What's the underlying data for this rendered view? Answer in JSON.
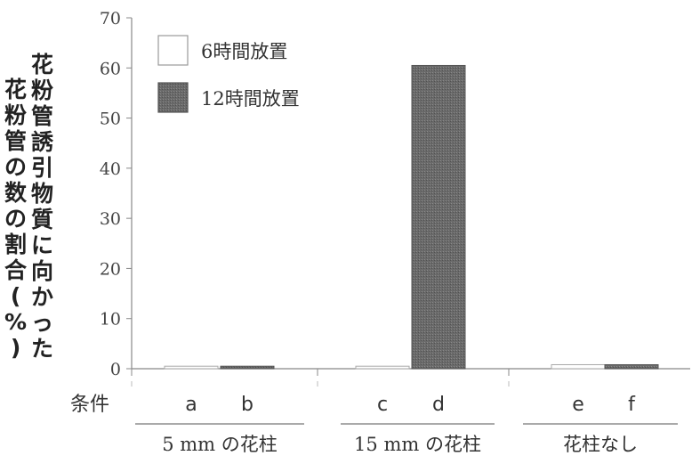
{
  "chart_data": {
    "type": "bar",
    "ylabel_lines": [
      "花粉管誘引物質に向かった",
      "花粉管の数の割合(%)"
    ],
    "ylim": [
      0,
      70
    ],
    "yticks": [
      0,
      10,
      20,
      30,
      40,
      50,
      60,
      70
    ],
    "grid": false,
    "legend_position": "top-left",
    "series": [
      {
        "name": "6時間放置",
        "color": "#ffffff"
      },
      {
        "name": "12時間放置",
        "color": "#666666"
      }
    ],
    "condition_label": "条件",
    "bars": [
      {
        "label": "a",
        "series": 0,
        "value": 0.5
      },
      {
        "label": "b",
        "series": 1,
        "value": 0.5
      },
      {
        "label": "c",
        "series": 0,
        "value": 0.5
      },
      {
        "label": "d",
        "series": 1,
        "value": 60.5
      },
      {
        "label": "e",
        "series": 0,
        "value": 0.8
      },
      {
        "label": "f",
        "series": 1,
        "value": 0.8
      }
    ],
    "groups": [
      {
        "label": "5 mm の花柱",
        "bars": [
          0,
          1
        ]
      },
      {
        "label": "15 mm の花柱",
        "bars": [
          2,
          3
        ]
      },
      {
        "label": "花柱なし",
        "bars": [
          4,
          5
        ]
      }
    ]
  }
}
